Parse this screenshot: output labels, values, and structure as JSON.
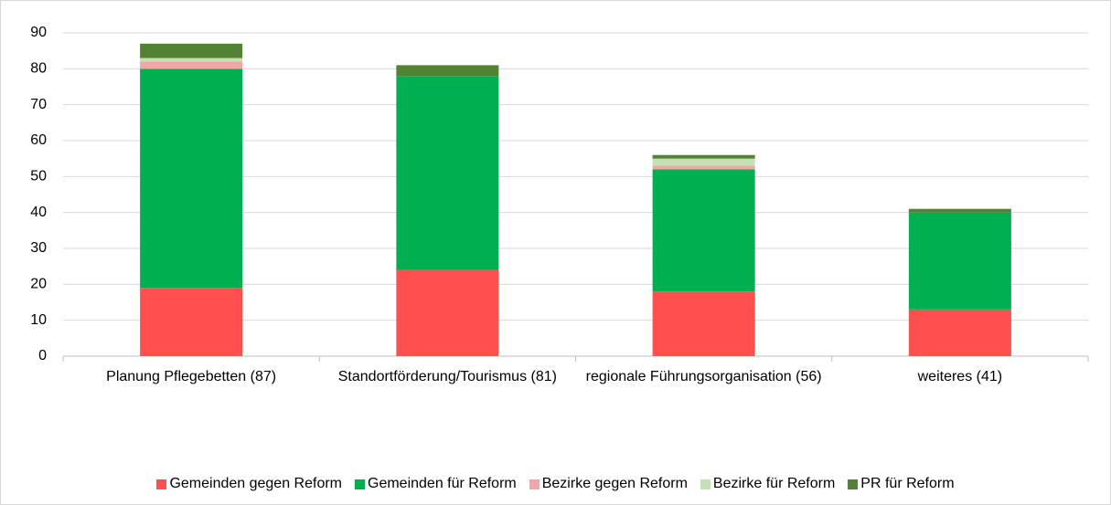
{
  "chart_data": {
    "type": "stacked_bar",
    "categories": [
      "Planung Pflegebetten (87)",
      "Standortförderung/Tourismus (81)",
      "regionale Führungsorganisation (56)",
      "weiteres (41)"
    ],
    "series": [
      {
        "name": "Gemeinden gegen Reform",
        "color": "#ff4f4f",
        "values": [
          19,
          24,
          18,
          13
        ]
      },
      {
        "name": "Gemeinden für Reform",
        "color": "#00b050",
        "values": [
          61,
          54,
          34,
          27
        ]
      },
      {
        "name": "Bezirke gegen Reform",
        "color": "#f4a6a6",
        "values": [
          2,
          0,
          1,
          0
        ]
      },
      {
        "name": "Bezirke für Reform",
        "color": "#c5e0b4",
        "values": [
          1,
          0,
          2,
          0
        ]
      },
      {
        "name": "PR für Reform",
        "color": "#548235",
        "values": [
          4,
          3,
          1,
          1
        ]
      }
    ],
    "ylim": [
      0,
      90
    ],
    "yticks": [
      0,
      10,
      20,
      30,
      40,
      50,
      60,
      70,
      80,
      90
    ],
    "grid": true,
    "legend": "bottom"
  }
}
